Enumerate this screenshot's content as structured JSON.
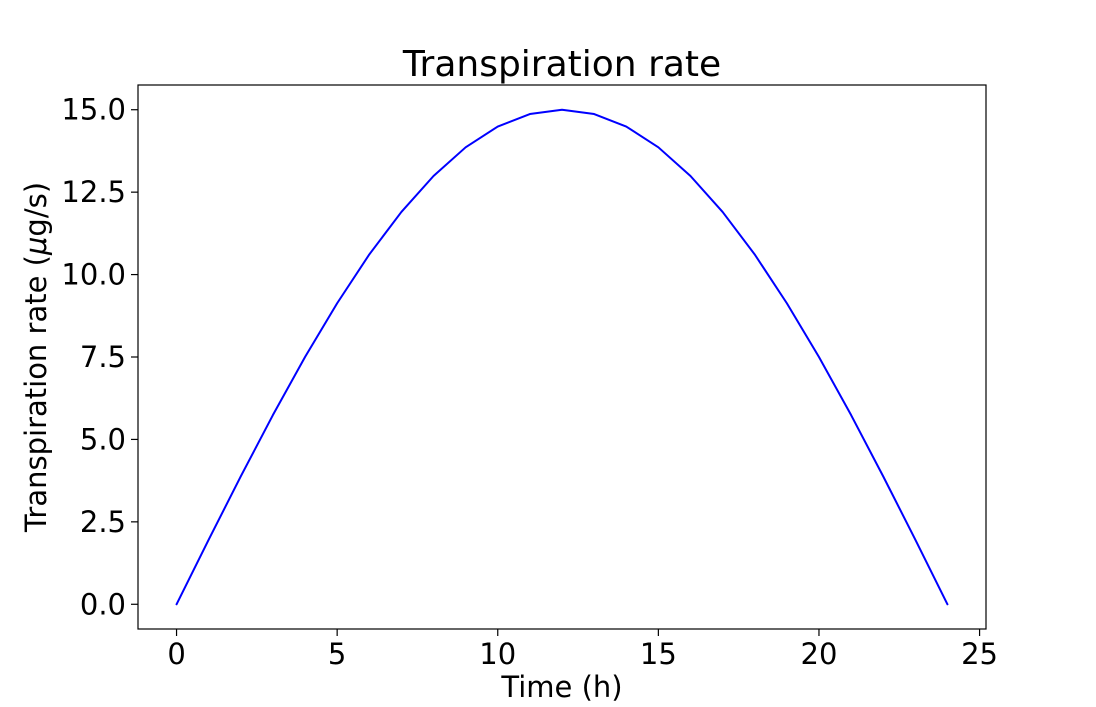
{
  "chart_data": {
    "type": "line",
    "title": "Transpiration rate",
    "xlabel": "Time (h)",
    "ylabel_main": "Transpiration rate (",
    "ylabel_mu": "μ",
    "ylabel_rest": "g/s)",
    "xlim": [
      -1.2,
      25.2
    ],
    "ylim": [
      -0.75,
      15.75
    ],
    "xticks": [
      0,
      5,
      10,
      15,
      20,
      25
    ],
    "xtick_labels": [
      "0",
      "5",
      "10",
      "15",
      "20",
      "25"
    ],
    "yticks": [
      0,
      2.5,
      5,
      7.5,
      10,
      12.5,
      15
    ],
    "ytick_labels": [
      "0.0",
      "2.5",
      "5.0",
      "7.5",
      "10.0",
      "12.5",
      "15.0"
    ],
    "grid": false,
    "series": [
      {
        "color": "#0000ff",
        "x": [
          0,
          1,
          2,
          3,
          4,
          5,
          6,
          7,
          8,
          9,
          10,
          11,
          12,
          13,
          14,
          15,
          16,
          17,
          18,
          19,
          20,
          21,
          22,
          23,
          24
        ],
        "y": [
          0,
          1.96,
          3.88,
          5.74,
          7.5,
          9.13,
          10.61,
          11.9,
          12.99,
          13.86,
          14.49,
          14.87,
          15,
          14.87,
          14.49,
          13.86,
          12.99,
          11.9,
          10.61,
          9.13,
          7.5,
          5.74,
          3.88,
          1.96,
          0
        ]
      }
    ]
  }
}
